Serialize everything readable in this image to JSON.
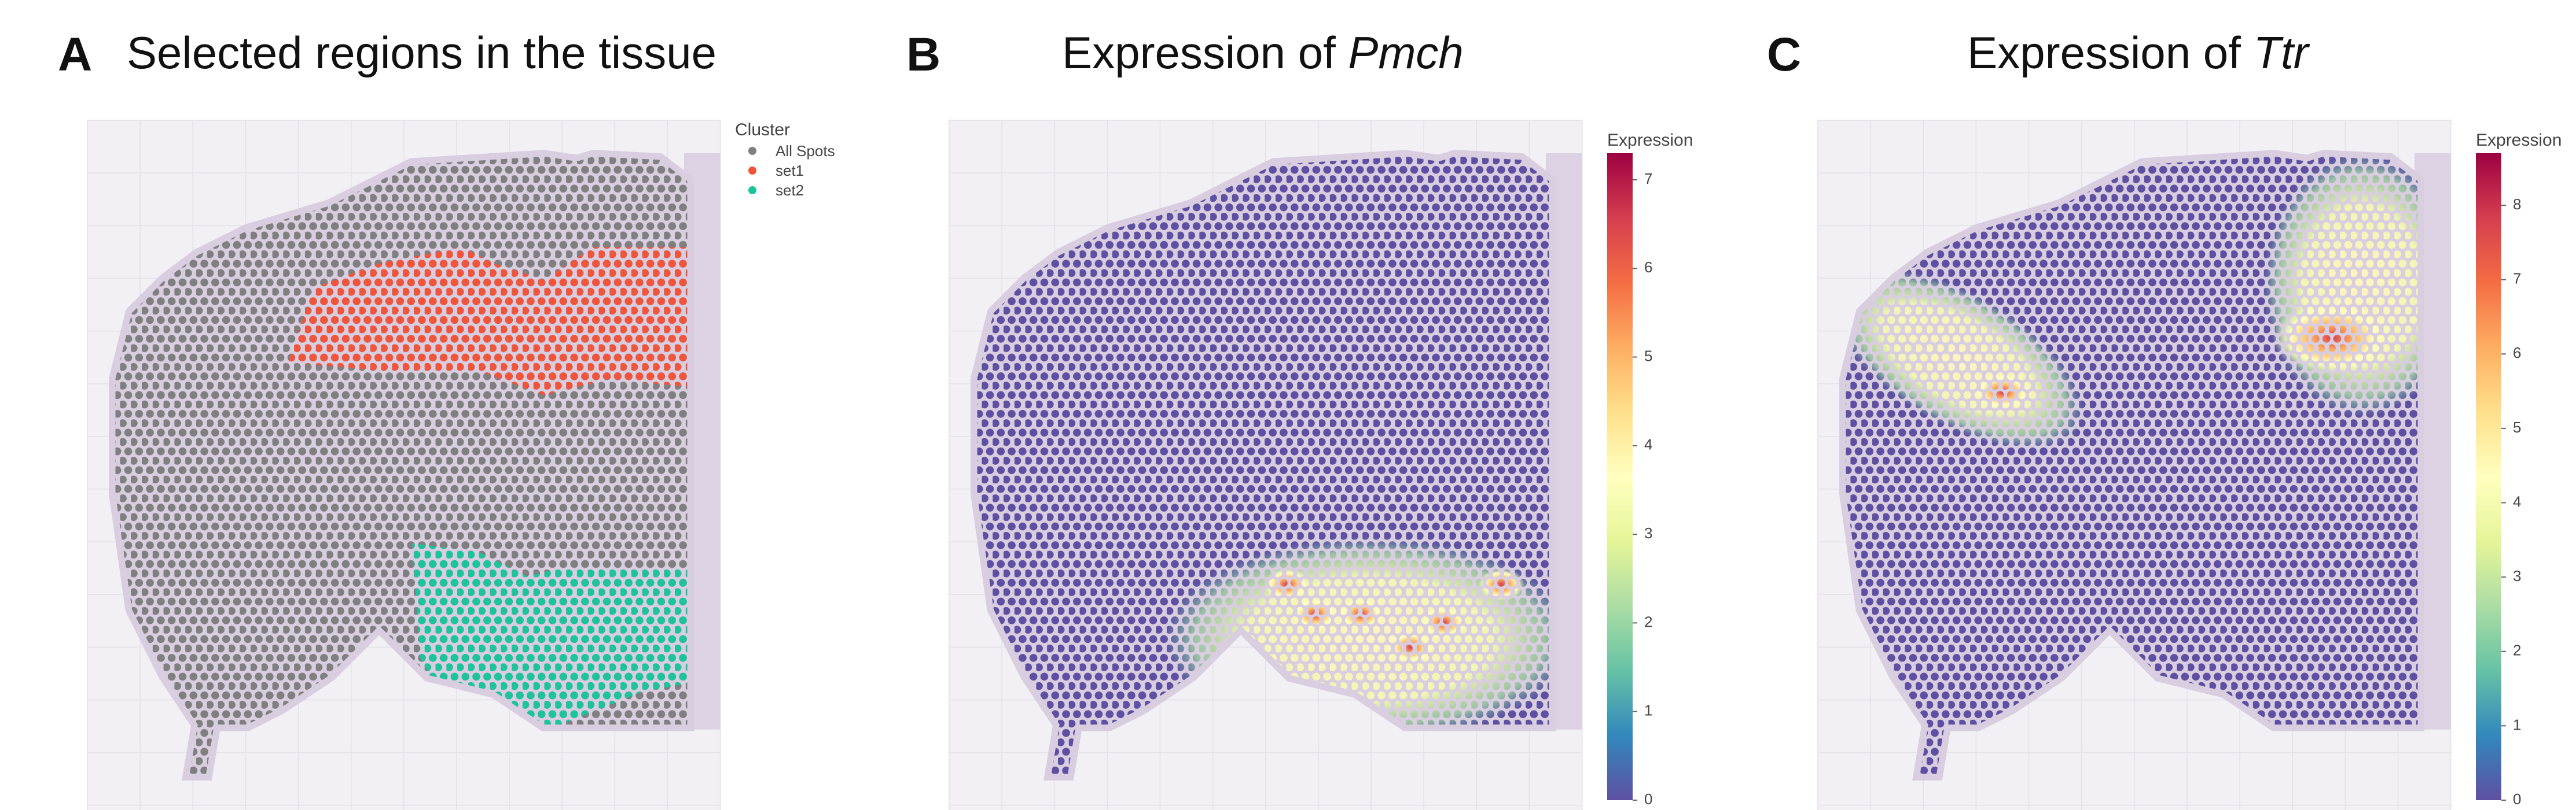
{
  "panels": [
    {
      "letter": "A",
      "title": "Selected regions in the tissue",
      "legend": {
        "title": "Cluster",
        "items": [
          {
            "name": "All Spots",
            "color": "#7f7f7f"
          },
          {
            "name": "set1",
            "color": "#ef553b"
          },
          {
            "name": "set2",
            "color": "#1cc39b"
          }
        ]
      }
    },
    {
      "letter": "B",
      "title_prefix": "Expression of ",
      "gene": "Pmch",
      "colorbar": {
        "title": "Expression",
        "lim": [
          0,
          7.3
        ],
        "ticks": [
          0,
          1,
          2,
          3,
          4,
          5,
          6,
          7
        ],
        "colorscale": [
          "#5e4fa2",
          "#3288bd",
          "#66c2a5",
          "#abdda4",
          "#e6f598",
          "#ffffbf",
          "#fee08b",
          "#fdae61",
          "#f46d43",
          "#d53e4f",
          "#9e0142"
        ]
      }
    },
    {
      "letter": "C",
      "title_prefix": "Expression of ",
      "gene": "Ttr",
      "colorbar": {
        "title": "Expression",
        "lim": [
          0,
          8.7
        ],
        "ticks": [
          0,
          1,
          2,
          3,
          4,
          5,
          6,
          7,
          8
        ],
        "colorscale": [
          "#5e4fa2",
          "#3288bd",
          "#66c2a5",
          "#abdda4",
          "#e6f598",
          "#ffffbf",
          "#fee08b",
          "#fdae61",
          "#f46d43",
          "#d53e4f",
          "#9e0142"
        ]
      }
    }
  ]
}
